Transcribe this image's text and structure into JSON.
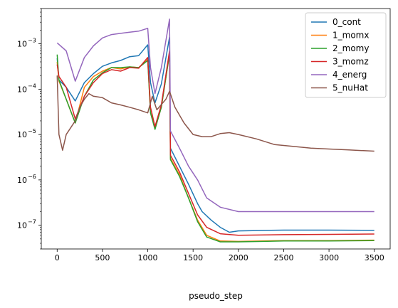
{
  "chart_data": {
    "type": "line",
    "xlabel": "pseudo_step",
    "ylabel": "",
    "title": "",
    "xlim": [
      -175,
      3675
    ],
    "ylim": [
      3e-08,
      0.006
    ],
    "yscale": "log",
    "grid": false,
    "legend_position": "top-right",
    "x_ticks": [
      0,
      500,
      1000,
      1500,
      2000,
      2500,
      3000,
      3500
    ],
    "y_ticks": [
      {
        "value": 1e-07,
        "label": "10",
        "exp": "−7"
      },
      {
        "value": 1e-06,
        "label": "10",
        "exp": "−6"
      },
      {
        "value": 1e-05,
        "label": "10",
        "exp": "−5"
      },
      {
        "value": 0.0001,
        "label": "10",
        "exp": "−4"
      },
      {
        "value": 0.001,
        "label": "10",
        "exp": "−3"
      }
    ],
    "series": [
      {
        "name": "0_cont",
        "color": "#1f77b4",
        "points": [
          [
            0,
            0.00048
          ],
          [
            20,
            0.00016
          ],
          [
            100,
            0.00011
          ],
          [
            200,
            5.5e-05
          ],
          [
            300,
            0.00014
          ],
          [
            400,
            0.00022
          ],
          [
            500,
            0.00032
          ],
          [
            600,
            0.00038
          ],
          [
            700,
            0.00043
          ],
          [
            800,
            0.00052
          ],
          [
            900,
            0.00055
          ],
          [
            1000,
            0.00095
          ],
          [
            1030,
            0.00014
          ],
          [
            1080,
            5e-05
          ],
          [
            1150,
            0.00013
          ],
          [
            1240,
            0.0014
          ],
          [
            1250,
            5e-06
          ],
          [
            1350,
            2e-06
          ],
          [
            1450,
            8e-07
          ],
          [
            1550,
            3e-07
          ],
          [
            1600,
            2e-07
          ],
          [
            1700,
            1.3e-07
          ],
          [
            1800,
            9e-08
          ],
          [
            1900,
            7e-08
          ],
          [
            2000,
            7.5e-08
          ],
          [
            2500,
            7.8e-08
          ],
          [
            3000,
            7.8e-08
          ],
          [
            3500,
            7.7e-08
          ]
        ]
      },
      {
        "name": "1_momx",
        "color": "#ff7f0e",
        "points": [
          [
            0,
            0.0004
          ],
          [
            20,
            0.00015
          ],
          [
            100,
            6e-05
          ],
          [
            200,
            1.8e-05
          ],
          [
            300,
            0.00011
          ],
          [
            400,
            0.00019
          ],
          [
            500,
            0.00025
          ],
          [
            600,
            0.0003
          ],
          [
            700,
            0.00028
          ],
          [
            800,
            0.00031
          ],
          [
            900,
            0.0003
          ],
          [
            1000,
            0.00045
          ],
          [
            1030,
            3e-05
          ],
          [
            1080,
            1.4e-05
          ],
          [
            1150,
            4e-05
          ],
          [
            1240,
            0.0006
          ],
          [
            1250,
            3e-06
          ],
          [
            1350,
            1.3e-06
          ],
          [
            1450,
            4e-07
          ],
          [
            1550,
            1.3e-07
          ],
          [
            1650,
            6e-08
          ],
          [
            1800,
            4.5e-08
          ],
          [
            2000,
            4.4e-08
          ],
          [
            2500,
            4.6e-08
          ],
          [
            3000,
            4.6e-08
          ],
          [
            3500,
            4.7e-08
          ]
        ]
      },
      {
        "name": "2_momy",
        "color": "#2ca02c",
        "points": [
          [
            0,
            0.00058
          ],
          [
            20,
            0.00016
          ],
          [
            100,
            6e-05
          ],
          [
            200,
            1.8e-05
          ],
          [
            300,
            7e-05
          ],
          [
            400,
            0.00016
          ],
          [
            500,
            0.00023
          ],
          [
            600,
            0.0003
          ],
          [
            700,
            0.0003
          ],
          [
            800,
            0.00031
          ],
          [
            900,
            0.0003
          ],
          [
            1000,
            0.00043
          ],
          [
            1030,
            3e-05
          ],
          [
            1080,
            1.3e-05
          ],
          [
            1150,
            4e-05
          ],
          [
            1240,
            0.0006
          ],
          [
            1250,
            2.8e-06
          ],
          [
            1350,
            1.2e-06
          ],
          [
            1450,
            4e-07
          ],
          [
            1550,
            1.2e-07
          ],
          [
            1650,
            5.5e-08
          ],
          [
            1800,
            4.3e-08
          ],
          [
            2000,
            4.3e-08
          ],
          [
            2500,
            4.5e-08
          ],
          [
            3000,
            4.5e-08
          ],
          [
            3500,
            4.6e-08
          ]
        ]
      },
      {
        "name": "3_momz",
        "color": "#d62728",
        "points": [
          [
            0,
            0.00035
          ],
          [
            20,
            0.00019
          ],
          [
            100,
            0.00011
          ],
          [
            200,
            2.2e-05
          ],
          [
            300,
            7e-05
          ],
          [
            400,
            0.00014
          ],
          [
            500,
            0.00022
          ],
          [
            600,
            0.00027
          ],
          [
            700,
            0.00025
          ],
          [
            800,
            0.0003
          ],
          [
            900,
            0.00029
          ],
          [
            1000,
            0.0005
          ],
          [
            1030,
            4e-05
          ],
          [
            1080,
            1.5e-05
          ],
          [
            1150,
            4.5e-05
          ],
          [
            1240,
            0.0007
          ],
          [
            1250,
            3.5e-06
          ],
          [
            1350,
            1.5e-06
          ],
          [
            1450,
            5e-07
          ],
          [
            1550,
            1.7e-07
          ],
          [
            1650,
            9e-08
          ],
          [
            1800,
            6.5e-08
          ],
          [
            2000,
            6e-08
          ],
          [
            2500,
            6.2e-08
          ],
          [
            3000,
            6.3e-08
          ],
          [
            3500,
            6.4e-08
          ]
        ]
      },
      {
        "name": "4_energ",
        "color": "#9467bd",
        "points": [
          [
            0,
            0.00105
          ],
          [
            100,
            0.0007
          ],
          [
            200,
            0.00015
          ],
          [
            300,
            0.0005
          ],
          [
            400,
            0.0009
          ],
          [
            500,
            0.00135
          ],
          [
            600,
            0.0016
          ],
          [
            700,
            0.0017
          ],
          [
            800,
            0.0018
          ],
          [
            900,
            0.0019
          ],
          [
            1000,
            0.0022
          ],
          [
            1030,
            0.0003
          ],
          [
            1080,
            8e-05
          ],
          [
            1150,
            0.0003
          ],
          [
            1240,
            0.0035
          ],
          [
            1250,
            1.2e-05
          ],
          [
            1350,
            5e-06
          ],
          [
            1450,
            2e-06
          ],
          [
            1550,
            1e-06
          ],
          [
            1650,
            4e-07
          ],
          [
            1800,
            2.5e-07
          ],
          [
            2000,
            2e-07
          ],
          [
            2500,
            2e-07
          ],
          [
            3000,
            2e-07
          ],
          [
            3500,
            2e-07
          ]
        ]
      },
      {
        "name": "5_nuHat",
        "color": "#8c564b",
        "points": [
          [
            0,
            0.0002
          ],
          [
            20,
            1e-05
          ],
          [
            60,
            4.5e-06
          ],
          [
            100,
            1e-05
          ],
          [
            200,
            2e-05
          ],
          [
            250,
            4e-05
          ],
          [
            300,
            6e-05
          ],
          [
            350,
            8e-05
          ],
          [
            400,
            7e-05
          ],
          [
            500,
            6.5e-05
          ],
          [
            600,
            5e-05
          ],
          [
            700,
            4.5e-05
          ],
          [
            800,
            4e-05
          ],
          [
            900,
            3.5e-05
          ],
          [
            1000,
            3e-05
          ],
          [
            1050,
            7e-05
          ],
          [
            1100,
            3.5e-05
          ],
          [
            1200,
            6e-05
          ],
          [
            1240,
            9e-05
          ],
          [
            1300,
            4e-05
          ],
          [
            1400,
            1.8e-05
          ],
          [
            1500,
            1e-05
          ],
          [
            1600,
            9e-06
          ],
          [
            1700,
            9e-06
          ],
          [
            1800,
            1.05e-05
          ],
          [
            1900,
            1.1e-05
          ],
          [
            2000,
            1e-05
          ],
          [
            2200,
            8e-06
          ],
          [
            2400,
            6e-06
          ],
          [
            2600,
            5.5e-06
          ],
          [
            2800,
            5e-06
          ],
          [
            3000,
            4.8e-06
          ],
          [
            3200,
            4.6e-06
          ],
          [
            3400,
            4.4e-06
          ],
          [
            3500,
            4.3e-06
          ]
        ]
      }
    ]
  }
}
